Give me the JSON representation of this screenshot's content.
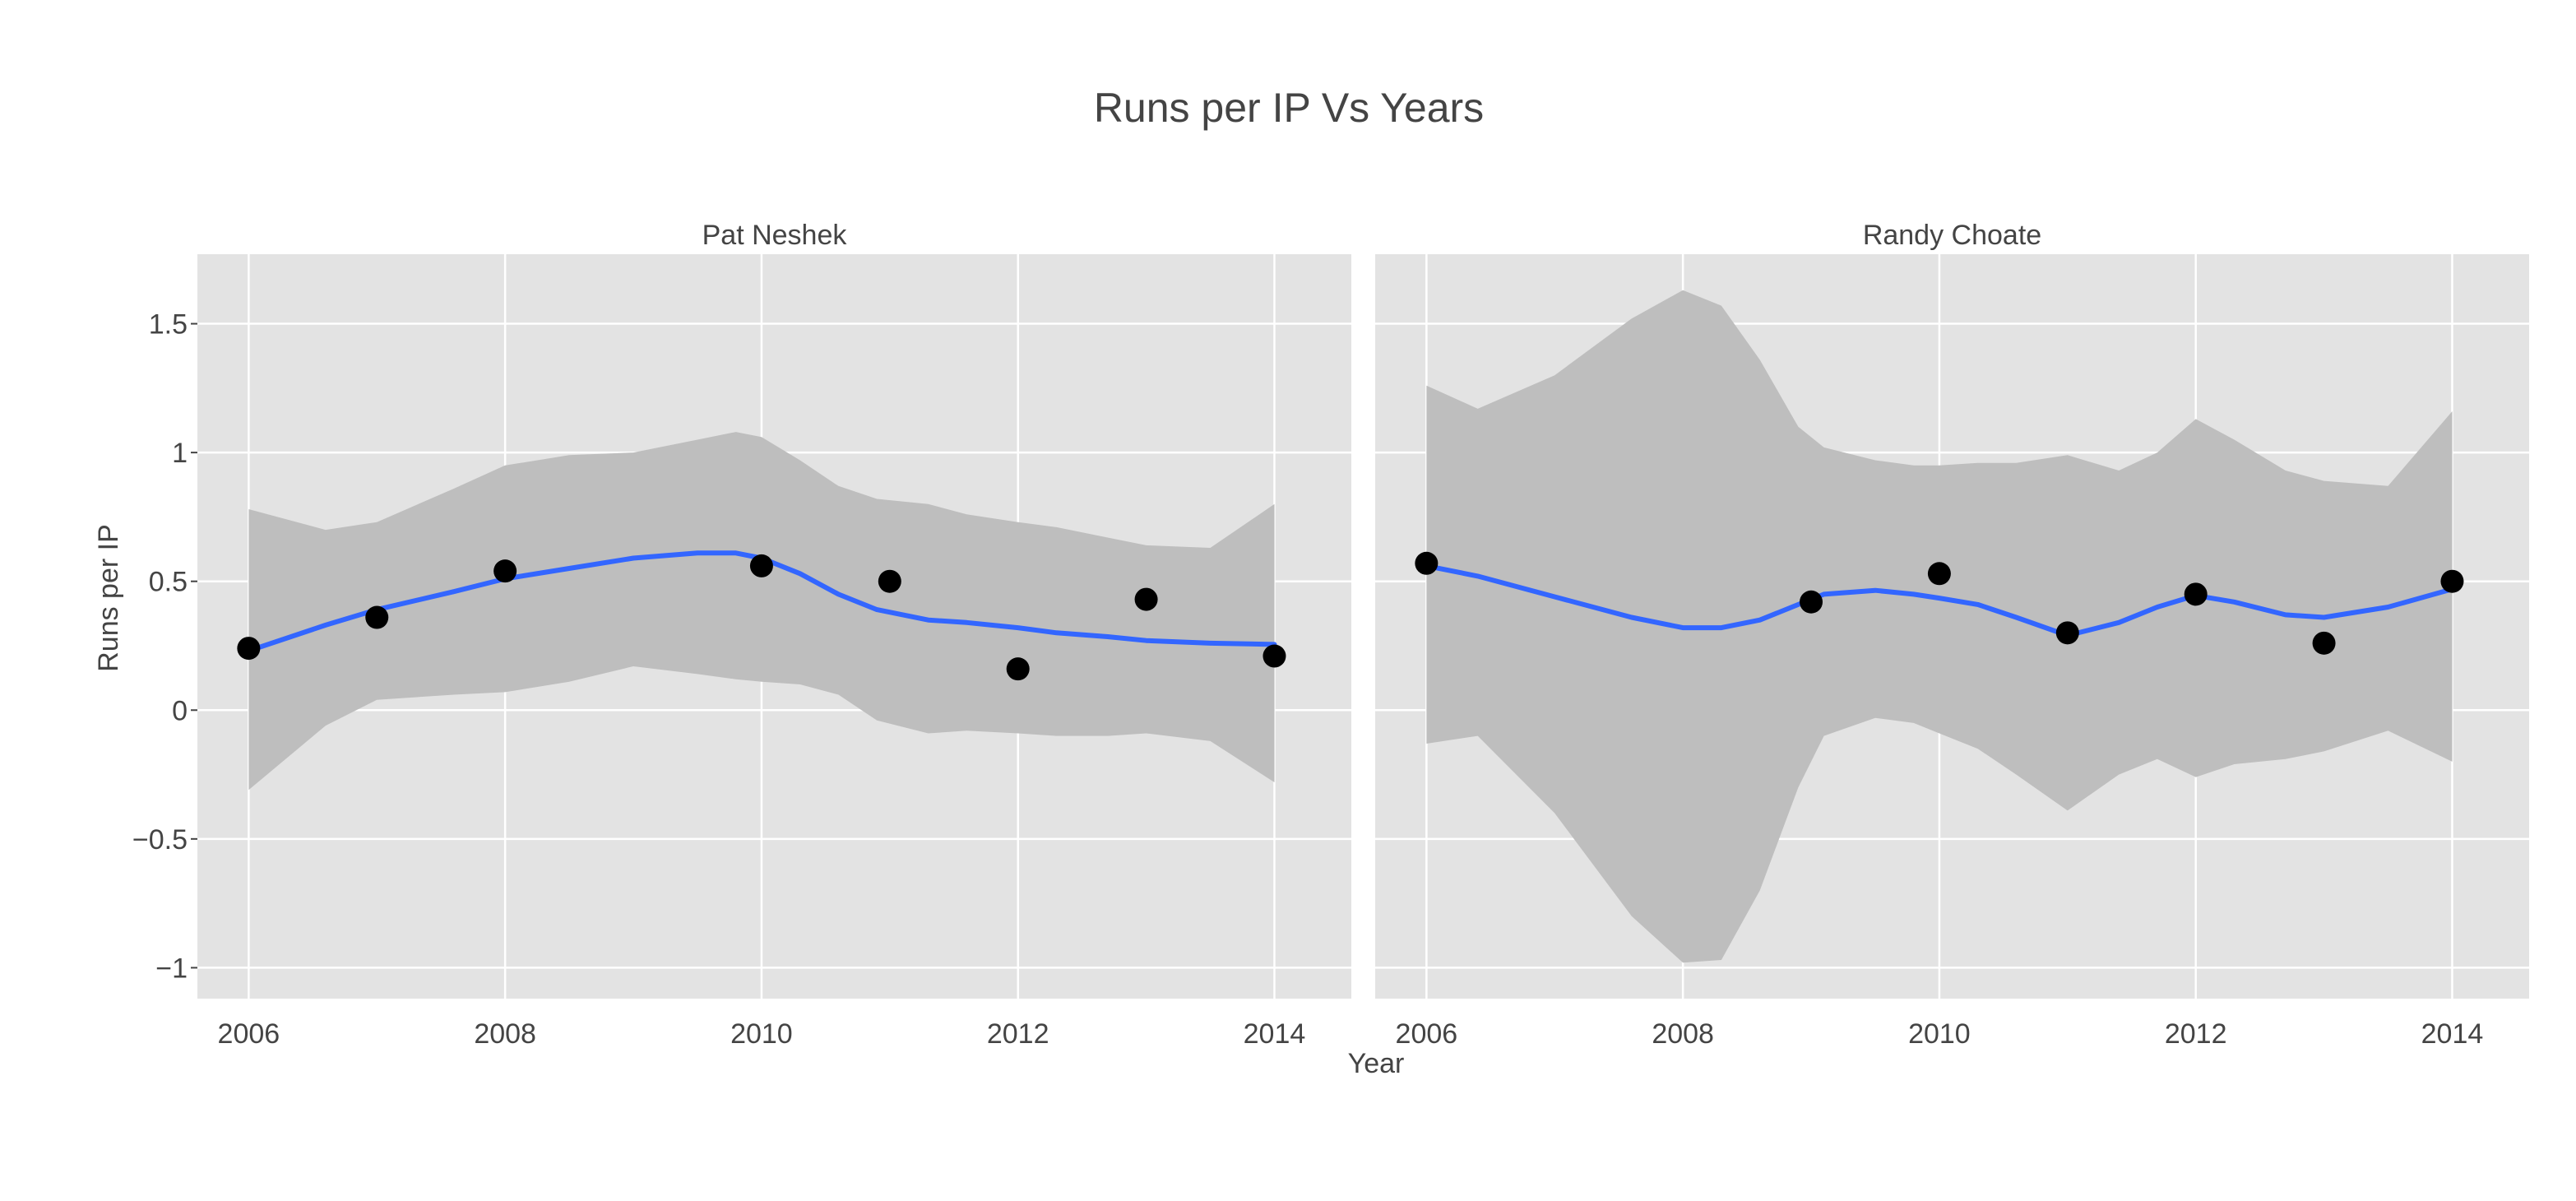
{
  "chart_data": {
    "type": "scatter",
    "title": "Runs per IP Vs Years",
    "xlabel": "Year",
    "ylabel": "Runs per IP",
    "xlim": [
      2005.6,
      2014.6
    ],
    "ylim": [
      -1.12,
      1.77
    ],
    "x_ticks": [
      2006,
      2008,
      2010,
      2012,
      2014
    ],
    "y_ticks": [
      -1,
      -0.5,
      0,
      0.5,
      1,
      1.5
    ],
    "y_tick_labels": [
      "−1",
      "−0.5",
      "0",
      "0.5",
      "1",
      "1.5"
    ],
    "grid": true,
    "colors": {
      "panel_bg": "#e3e3e3",
      "grid": "#ffffff",
      "ribbon": "#bebebe",
      "line": "#3366ff",
      "points": "#000000"
    },
    "panels": [
      {
        "strip": "Pat Neshek",
        "points": {
          "x": [
            2006,
            2007,
            2008,
            2010,
            2011,
            2012,
            2013,
            2014
          ],
          "y": [
            0.24,
            0.36,
            0.54,
            0.56,
            0.5,
            0.16,
            0.43,
            0.21
          ]
        },
        "smooth": {
          "x": [
            2006,
            2006.6,
            2007,
            2007.6,
            2008,
            2008.5,
            2009,
            2009.5,
            2009.8,
            2010,
            2010.3,
            2010.6,
            2010.9,
            2011.3,
            2011.6,
            2012,
            2012.3,
            2012.7,
            2013,
            2013.5,
            2014
          ],
          "y": [
            0.23,
            0.33,
            0.39,
            0.46,
            0.51,
            0.55,
            0.59,
            0.61,
            0.61,
            0.59,
            0.53,
            0.45,
            0.39,
            0.35,
            0.34,
            0.32,
            0.3,
            0.285,
            0.27,
            0.26,
            0.255
          ],
          "upper": [
            0.78,
            0.7,
            0.73,
            0.86,
            0.95,
            0.99,
            1.0,
            1.05,
            1.08,
            1.06,
            0.97,
            0.87,
            0.82,
            0.8,
            0.76,
            0.73,
            0.71,
            0.67,
            0.64,
            0.63,
            0.8
          ],
          "lower": [
            -0.31,
            -0.06,
            0.04,
            0.06,
            0.07,
            0.11,
            0.17,
            0.14,
            0.12,
            0.11,
            0.1,
            0.06,
            -0.04,
            -0.09,
            -0.08,
            -0.09,
            -0.1,
            -0.1,
            -0.09,
            -0.12,
            -0.28
          ]
        }
      },
      {
        "strip": "Randy Choate",
        "points": {
          "x": [
            2006,
            2009,
            2010,
            2011,
            2012,
            2013,
            2014
          ],
          "y": [
            0.57,
            0.42,
            0.53,
            0.3,
            0.45,
            0.26,
            0.5
          ]
        },
        "smooth": {
          "x": [
            2006,
            2006.4,
            2007,
            2007.6,
            2008,
            2008.3,
            2008.6,
            2008.9,
            2009.1,
            2009.5,
            2009.8,
            2010,
            2010.3,
            2010.6,
            2011,
            2011.4,
            2011.7,
            2012,
            2012.3,
            2012.7,
            2013,
            2013.5,
            2014
          ],
          "y": [
            0.56,
            0.52,
            0.44,
            0.36,
            0.32,
            0.32,
            0.35,
            0.41,
            0.45,
            0.465,
            0.45,
            0.435,
            0.41,
            0.36,
            0.29,
            0.34,
            0.4,
            0.445,
            0.42,
            0.37,
            0.36,
            0.4,
            0.47
          ],
          "upper": [
            1.26,
            1.17,
            1.3,
            1.52,
            1.63,
            1.57,
            1.36,
            1.1,
            1.02,
            0.97,
            0.95,
            0.95,
            0.96,
            0.96,
            0.99,
            0.93,
            1.0,
            1.13,
            1.05,
            0.93,
            0.89,
            0.87,
            1.16
          ],
          "lower": [
            -0.13,
            -0.1,
            -0.4,
            -0.8,
            -0.98,
            -0.97,
            -0.7,
            -0.3,
            -0.1,
            -0.03,
            -0.05,
            -0.09,
            -0.15,
            -0.25,
            -0.39,
            -0.25,
            -0.19,
            -0.26,
            -0.21,
            -0.19,
            -0.16,
            -0.08,
            -0.2
          ]
        }
      }
    ]
  }
}
